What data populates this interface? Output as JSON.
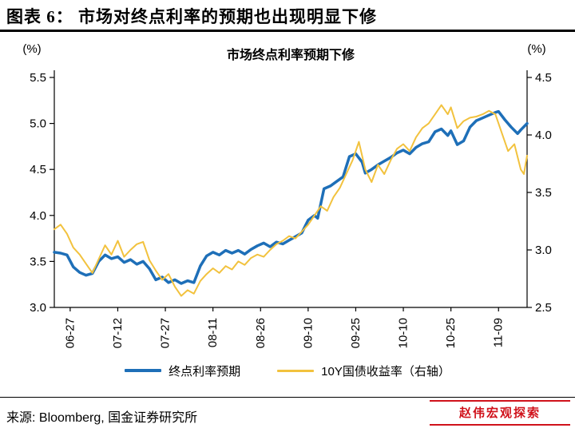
{
  "header": {
    "title": "图表 6： 市场对终点利率的预期也出现明显下修"
  },
  "chart_data": {
    "type": "line",
    "title": "市场终点利率预期下修",
    "grid": "off",
    "legend_position": "bottom",
    "left_axis": {
      "unit": "(%)",
      "min": 3.0,
      "max": 5.5,
      "ticks": [
        3.0,
        3.5,
        4.0,
        4.5,
        5.0,
        5.5
      ]
    },
    "right_axis": {
      "unit": "(%)",
      "min": 2.5,
      "max": 4.5,
      "ticks": [
        2.5,
        3.0,
        3.5,
        4.0,
        4.5
      ]
    },
    "x_domain": [
      -5,
      144
    ],
    "x_ticks": [
      {
        "day": 0,
        "label": "06-27"
      },
      {
        "day": 15,
        "label": "07-12"
      },
      {
        "day": 30,
        "label": "07-27"
      },
      {
        "day": 45,
        "label": "08-11"
      },
      {
        "day": 60,
        "label": "08-26"
      },
      {
        "day": 75,
        "label": "09-10"
      },
      {
        "day": 90,
        "label": "09-25"
      },
      {
        "day": 105,
        "label": "10-10"
      },
      {
        "day": 120,
        "label": "10-25"
      },
      {
        "day": 135,
        "label": "11-09"
      }
    ],
    "series": [
      {
        "name": "终点利率预期",
        "axis": "left",
        "color": "#1E6FB8",
        "width": 3.5,
        "points": [
          [
            -5,
            3.6
          ],
          [
            -3,
            3.59
          ],
          [
            -1,
            3.57
          ],
          [
            1,
            3.44
          ],
          [
            3,
            3.38
          ],
          [
            5,
            3.35
          ],
          [
            7,
            3.37
          ],
          [
            9,
            3.5
          ],
          [
            11,
            3.57
          ],
          [
            13,
            3.53
          ],
          [
            15,
            3.55
          ],
          [
            17,
            3.49
          ],
          [
            19,
            3.52
          ],
          [
            21,
            3.47
          ],
          [
            23,
            3.5
          ],
          [
            25,
            3.42
          ],
          [
            27,
            3.3
          ],
          [
            29,
            3.33
          ],
          [
            31,
            3.27
          ],
          [
            33,
            3.3
          ],
          [
            35,
            3.26
          ],
          [
            37,
            3.29
          ],
          [
            39,
            3.27
          ],
          [
            41,
            3.45
          ],
          [
            43,
            3.56
          ],
          [
            45,
            3.6
          ],
          [
            47,
            3.57
          ],
          [
            49,
            3.62
          ],
          [
            51,
            3.59
          ],
          [
            53,
            3.62
          ],
          [
            55,
            3.58
          ],
          [
            57,
            3.63
          ],
          [
            59,
            3.67
          ],
          [
            61,
            3.7
          ],
          [
            63,
            3.66
          ],
          [
            65,
            3.71
          ],
          [
            67,
            3.69
          ],
          [
            69,
            3.73
          ],
          [
            71,
            3.77
          ],
          [
            73,
            3.81
          ],
          [
            75,
            3.95
          ],
          [
            77,
            4.0
          ],
          [
            78,
            3.97
          ],
          [
            80,
            4.29
          ],
          [
            82,
            4.32
          ],
          [
            84,
            4.37
          ],
          [
            86,
            4.42
          ],
          [
            88,
            4.64
          ],
          [
            90,
            4.67
          ],
          [
            92,
            4.58
          ],
          [
            93,
            4.46
          ],
          [
            95,
            4.5
          ],
          [
            97,
            4.55
          ],
          [
            99,
            4.59
          ],
          [
            101,
            4.63
          ],
          [
            103,
            4.68
          ],
          [
            105,
            4.71
          ],
          [
            107,
            4.67
          ],
          [
            109,
            4.74
          ],
          [
            111,
            4.78
          ],
          [
            113,
            4.8
          ],
          [
            115,
            4.91
          ],
          [
            117,
            4.94
          ],
          [
            119,
            4.87
          ],
          [
            120,
            4.92
          ],
          [
            122,
            4.77
          ],
          [
            124,
            4.81
          ],
          [
            126,
            4.96
          ],
          [
            128,
            5.03
          ],
          [
            130,
            5.06
          ],
          [
            132,
            5.09
          ],
          [
            134,
            5.12
          ],
          [
            135,
            5.13
          ],
          [
            137,
            5.04
          ],
          [
            139,
            4.96
          ],
          [
            141,
            4.89
          ],
          [
            142,
            4.93
          ],
          [
            144,
            5.0
          ]
        ]
      },
      {
        "name": "10Y国债收益率（右轴）",
        "axis": "right",
        "color": "#F2C23E",
        "width": 2,
        "points": [
          [
            -5,
            3.18
          ],
          [
            -3,
            3.22
          ],
          [
            -1,
            3.14
          ],
          [
            1,
            3.02
          ],
          [
            3,
            2.96
          ],
          [
            5,
            2.88
          ],
          [
            7,
            2.8
          ],
          [
            9,
            2.92
          ],
          [
            11,
            3.04
          ],
          [
            13,
            2.96
          ],
          [
            15,
            3.08
          ],
          [
            17,
            2.94
          ],
          [
            19,
            3.0
          ],
          [
            21,
            3.05
          ],
          [
            23,
            3.07
          ],
          [
            25,
            2.91
          ],
          [
            27,
            2.82
          ],
          [
            29,
            2.74
          ],
          [
            31,
            2.79
          ],
          [
            33,
            2.68
          ],
          [
            35,
            2.6
          ],
          [
            37,
            2.65
          ],
          [
            39,
            2.62
          ],
          [
            41,
            2.73
          ],
          [
            43,
            2.79
          ],
          [
            45,
            2.84
          ],
          [
            47,
            2.8
          ],
          [
            49,
            2.86
          ],
          [
            51,
            2.83
          ],
          [
            53,
            2.9
          ],
          [
            55,
            2.87
          ],
          [
            57,
            2.93
          ],
          [
            59,
            2.96
          ],
          [
            61,
            2.94
          ],
          [
            63,
            3.0
          ],
          [
            65,
            3.05
          ],
          [
            67,
            3.08
          ],
          [
            69,
            3.12
          ],
          [
            71,
            3.1
          ],
          [
            73,
            3.16
          ],
          [
            75,
            3.22
          ],
          [
            77,
            3.3
          ],
          [
            79,
            3.38
          ],
          [
            81,
            3.34
          ],
          [
            83,
            3.46
          ],
          [
            85,
            3.54
          ],
          [
            87,
            3.66
          ],
          [
            89,
            3.78
          ],
          [
            91,
            3.94
          ],
          [
            93,
            3.7
          ],
          [
            95,
            3.59
          ],
          [
            97,
            3.74
          ],
          [
            99,
            3.66
          ],
          [
            101,
            3.78
          ],
          [
            103,
            3.88
          ],
          [
            105,
            3.92
          ],
          [
            107,
            3.86
          ],
          [
            109,
            3.98
          ],
          [
            111,
            4.06
          ],
          [
            113,
            4.1
          ],
          [
            115,
            4.18
          ],
          [
            117,
            4.26
          ],
          [
            119,
            4.18
          ],
          [
            120,
            4.24
          ],
          [
            122,
            4.06
          ],
          [
            124,
            4.12
          ],
          [
            126,
            4.15
          ],
          [
            128,
            4.16
          ],
          [
            130,
            4.18
          ],
          [
            132,
            4.21
          ],
          [
            134,
            4.18
          ],
          [
            136,
            4.02
          ],
          [
            138,
            3.86
          ],
          [
            140,
            3.92
          ],
          [
            142,
            3.7
          ],
          [
            143,
            3.66
          ],
          [
            144,
            3.82
          ]
        ]
      }
    ]
  },
  "footer": {
    "source": "来源: Bloomberg, 国金证券研究所",
    "stamp": "赵伟宏观探索",
    "stamp_color": "#D0121B"
  }
}
